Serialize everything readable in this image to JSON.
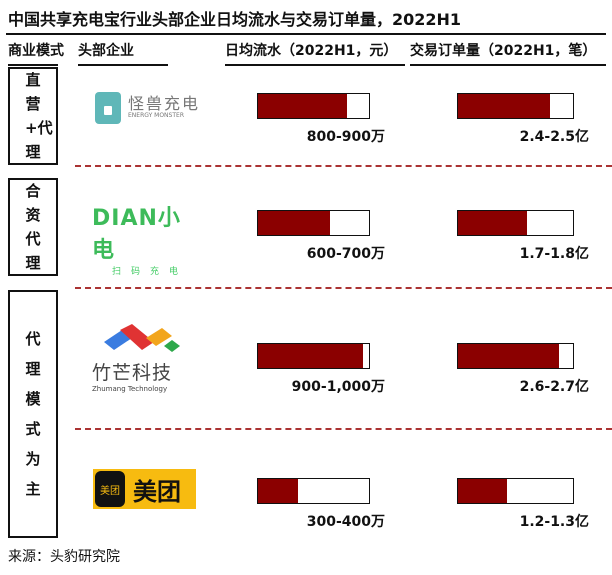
{
  "title": "中国共享充电宝行业头部企业日均流水与交易订单量，2022H1",
  "headers": {
    "model": "商业模式",
    "company": "头部企业",
    "flow": "日均流水（2022H1，元）",
    "orders": "交易订单量（2022H1，笔）"
  },
  "models": [
    {
      "label": "直营+代理",
      "chars": [
        "直",
        "营",
        "+",
        "代",
        "理"
      ]
    },
    {
      "label": "合资代理",
      "chars": [
        "合",
        "资",
        "代",
        "理"
      ]
    },
    {
      "label": "代理模式为主",
      "chars": [
        "代",
        "理",
        "模",
        "式",
        "为",
        "主"
      ]
    }
  ],
  "rows": [
    {
      "company": "怪兽充电",
      "logo_sub": "ENERGY MONSTER",
      "flow_label": "800-900万",
      "flow_fill": 0.8,
      "orders_label": "2.4-2.5亿",
      "orders_fill": 0.8
    },
    {
      "company": "DIAN小电",
      "logo_sub": "扫码充电",
      "flow_label": "600-700万",
      "flow_fill": 0.65,
      "orders_label": "1.7-1.8亿",
      "orders_fill": 0.6
    },
    {
      "company": "竹芒科技",
      "logo_sub": "Zhumang Technology",
      "flow_label": "900-1,000万",
      "flow_fill": 0.95,
      "orders_label": "2.6-2.7亿",
      "orders_fill": 0.88
    },
    {
      "company": "美团",
      "logo_sub": "美团",
      "flow_label": "300-400万",
      "flow_fill": 0.36,
      "orders_label": "1.2-1.3亿",
      "orders_fill": 0.43
    }
  ],
  "colors": {
    "bar_fill": "#8b0000",
    "dash": "#aa3333"
  },
  "source": "来源：头豹研究院"
}
